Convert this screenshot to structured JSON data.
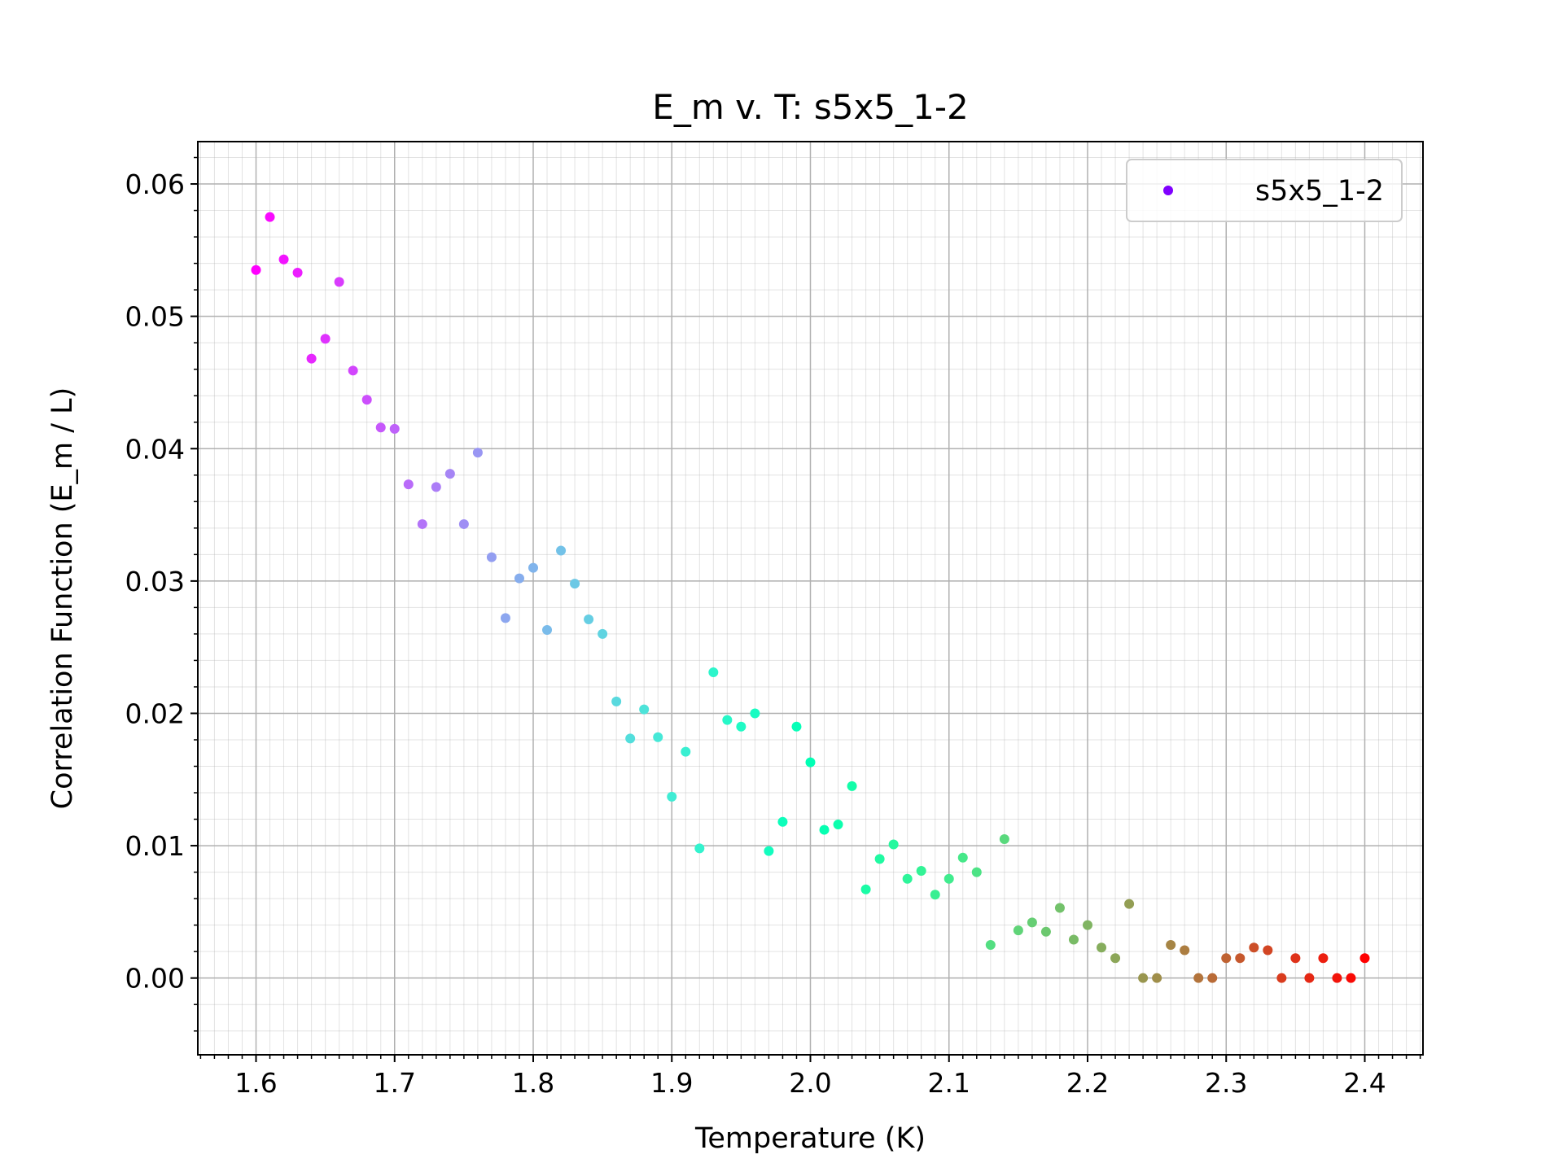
{
  "chart_data": {
    "type": "scatter",
    "title": "E_m v. T: s5x5_1-2",
    "xlabel": "Temperature (K)",
    "ylabel": "Correlation Function (E_m / L)",
    "xlim": [
      1.558,
      2.442
    ],
    "ylim": [
      -0.0058,
      0.0632
    ],
    "x_major_ticks": [
      1.6,
      1.7,
      1.8,
      1.9,
      2.0,
      2.1,
      2.2,
      2.3,
      2.4
    ],
    "x_tick_labels": [
      "1.6",
      "1.7",
      "1.8",
      "1.9",
      "2.0",
      "2.1",
      "2.2",
      "2.3",
      "2.4"
    ],
    "y_major_ticks": [
      0.0,
      0.01,
      0.02,
      0.03,
      0.04,
      0.05,
      0.06
    ],
    "y_tick_labels": [
      "0.00",
      "0.01",
      "0.02",
      "0.03",
      "0.04",
      "0.05",
      "0.06"
    ],
    "minor_x_step": 0.01,
    "minor_y_step": 0.002,
    "grid": "major and minor",
    "legend_position": "top-right",
    "colormap": "rainbow",
    "series": [
      {
        "name": "s5x5_1-2",
        "legend_color": "#8000ff",
        "x": [
          1.6,
          1.61,
          1.62,
          1.63,
          1.64,
          1.65,
          1.66,
          1.67,
          1.68,
          1.69,
          1.7,
          1.71,
          1.72,
          1.73,
          1.74,
          1.75,
          1.76,
          1.77,
          1.78,
          1.79,
          1.8,
          1.81,
          1.82,
          1.83,
          1.84,
          1.85,
          1.86,
          1.87,
          1.88,
          1.89,
          1.9,
          1.91,
          1.92,
          1.93,
          1.94,
          1.95,
          1.96,
          1.97,
          1.98,
          1.99,
          2.0,
          2.01,
          2.02,
          2.03,
          2.04,
          2.05,
          2.06,
          2.07,
          2.08,
          2.09,
          2.1,
          2.11,
          2.12,
          2.13,
          2.14,
          2.15,
          2.16,
          2.17,
          2.18,
          2.19,
          2.2,
          2.21,
          2.22,
          2.23,
          2.24,
          2.25,
          2.26,
          2.27,
          2.28,
          2.29,
          2.3,
          2.31,
          2.32,
          2.33,
          2.34,
          2.35,
          2.36,
          2.37,
          2.38,
          2.39,
          2.4
        ],
        "y": [
          0.0535,
          0.0575,
          0.0543,
          0.0533,
          0.0468,
          0.0483,
          0.0526,
          0.0459,
          0.0437,
          0.0416,
          0.0415,
          0.0373,
          0.0343,
          0.0371,
          0.0381,
          0.0343,
          0.0397,
          0.0318,
          0.0272,
          0.0302,
          0.031,
          0.0263,
          0.0323,
          0.0298,
          0.0271,
          0.026,
          0.0209,
          0.0181,
          0.0203,
          0.0182,
          0.0137,
          0.0171,
          0.0098,
          0.0231,
          0.0195,
          0.019,
          0.02,
          0.0096,
          0.0118,
          0.019,
          0.0163,
          0.0112,
          0.0116,
          0.0145,
          0.0067,
          0.009,
          0.0101,
          0.0075,
          0.0081,
          0.0063,
          0.0075,
          0.0091,
          0.008,
          0.0025,
          0.0105,
          0.0036,
          0.0042,
          0.0035,
          0.0053,
          0.0029,
          0.004,
          0.0023,
          0.0015,
          0.0056,
          0.0,
          0.0,
          0.0025,
          0.0021,
          0.0,
          0.0,
          0.0015,
          0.0015,
          0.0023,
          0.0021,
          0.0,
          0.0015,
          0.0,
          0.0015,
          0.0,
          0.0,
          0.0015
        ]
      }
    ]
  }
}
